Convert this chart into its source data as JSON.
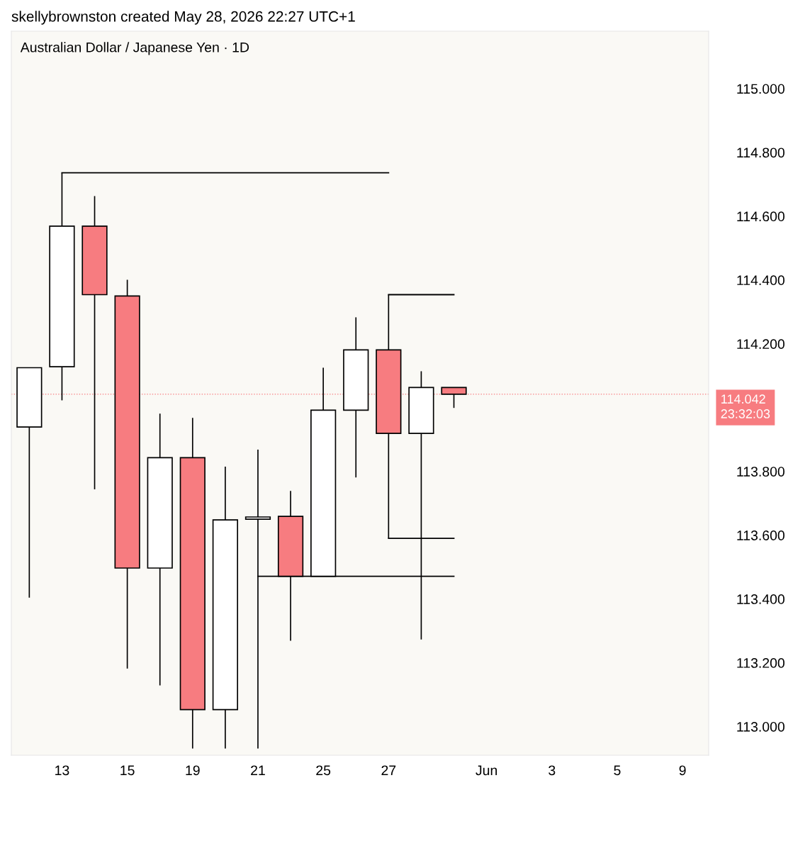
{
  "chart_data": {
    "type": "candlestick",
    "title": "Australian Dollar / Japanese Yen · 1D",
    "annotations": [
      "skellybrownston created May 28, 2026 22:27 UTC+1"
    ],
    "categories": [
      null,
      "13",
      null,
      "15",
      null,
      "19",
      null,
      "21",
      null,
      "25",
      null,
      "27",
      null,
      null,
      "Jun",
      null,
      "3",
      null,
      "5",
      null,
      "9"
    ],
    "ohlc": [
      [
        113.939,
        114.125,
        113.404,
        114.125
      ],
      [
        114.128,
        114.736,
        114.023,
        114.569
      ],
      [
        114.569,
        114.663,
        113.744,
        114.354
      ],
      [
        114.35,
        114.401,
        113.182,
        113.497
      ],
      [
        113.497,
        113.981,
        113.129,
        113.843
      ],
      [
        113.843,
        113.968,
        112.931,
        113.053
      ],
      [
        113.053,
        113.815,
        112.931,
        113.648
      ],
      [
        113.65,
        113.868,
        112.931,
        113.657
      ],
      [
        113.659,
        113.739,
        113.269,
        113.471
      ],
      [
        113.471,
        114.125,
        113.471,
        113.992
      ],
      [
        113.992,
        114.283,
        113.781,
        114.181
      ],
      [
        114.181,
        114.354,
        113.59,
        113.919
      ],
      [
        113.919,
        114.114,
        113.273,
        114.063
      ],
      [
        114.063,
        114.063,
        113.999,
        114.042
      ],
      null,
      null,
      null,
      null,
      null,
      null,
      null
    ],
    "colors": [
      "#ffffff",
      "#ffffff",
      "#f77c80",
      "#f77c80",
      "#ffffff",
      "#f77c80",
      "#ffffff",
      "#ffffff",
      "#f77c80",
      "#ffffff",
      "#ffffff",
      "#f77c80",
      "#ffffff",
      "#f77c80",
      null,
      null,
      null,
      null,
      null,
      null,
      null
    ],
    "series": [
      {
        "type": "line",
        "color": "#000000",
        "values": [
          null,
          114.736,
          114.736,
          114.736,
          114.736,
          114.736,
          114.736,
          114.736,
          114.736,
          114.736,
          114.736,
          114.736,
          null,
          null,
          null,
          null,
          null,
          null,
          null,
          null,
          null
        ]
      },
      {
        "type": "line",
        "color": "#000000",
        "values": [
          null,
          null,
          null,
          null,
          null,
          null,
          null,
          null,
          null,
          null,
          null,
          114.354,
          114.354,
          114.354,
          null,
          null,
          null,
          null,
          null,
          null,
          null
        ]
      },
      {
        "type": "line",
        "color": "#000000",
        "values": [
          null,
          null,
          null,
          null,
          null,
          null,
          null,
          null,
          null,
          null,
          null,
          113.59,
          113.59,
          113.59,
          null,
          null,
          null,
          null,
          null,
          null,
          null
        ]
      },
      {
        "type": "line",
        "color": "#000000",
        "values": [
          null,
          null,
          null,
          null,
          null,
          null,
          null,
          113.471,
          113.471,
          113.471,
          113.471,
          113.471,
          113.471,
          113.471,
          null,
          null,
          null,
          null,
          null,
          null,
          null
        ]
      }
    ],
    "ref_lines": [
      {
        "axis": "y",
        "value": 114.042,
        "label": "114.042\n23:32:03",
        "color": "#f77c80",
        "line_style": "dotted"
      }
    ],
    "ylim": [
      112.91,
      115.18
    ],
    "yticks": [
      {
        "value": 113.0,
        "label": "113.000"
      },
      {
        "value": 113.2,
        "label": "113.200"
      },
      {
        "value": 113.4,
        "label": "113.400"
      },
      {
        "value": 113.6,
        "label": "113.600"
      },
      {
        "value": 113.8,
        "label": "113.800"
      },
      {
        "value": 114.2,
        "label": "114.200"
      },
      {
        "value": 114.4,
        "label": "114.400"
      },
      {
        "value": 114.6,
        "label": "114.600"
      },
      {
        "value": 114.8,
        "label": "114.800"
      },
      {
        "value": 115.0,
        "label": "115.000"
      }
    ],
    "grid": false,
    "legend": false
  }
}
